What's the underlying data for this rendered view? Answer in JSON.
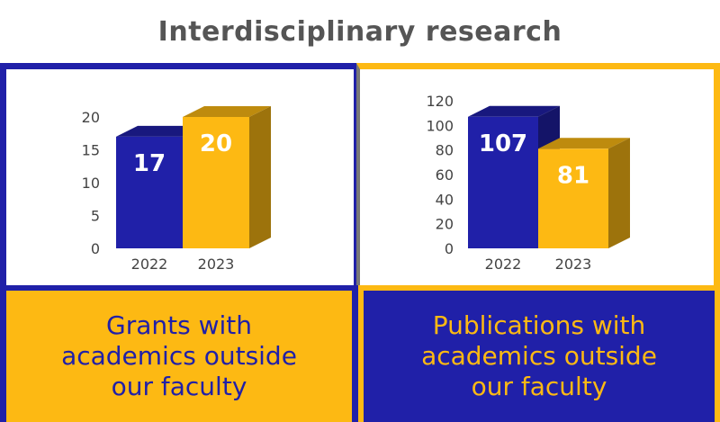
{
  "title": "Interdisciplinary research",
  "colors": {
    "blue": "#2020a8",
    "gold": "#fdb913"
  },
  "captions": {
    "left": [
      "Grants with",
      "academics outside",
      "our faculty"
    ],
    "right": [
      "Publications with",
      "academics outside",
      "our faculty"
    ]
  },
  "chart_data": [
    {
      "type": "bar",
      "categories": [
        "2022",
        "2023"
      ],
      "values": [
        17,
        20
      ],
      "data_labels": [
        "17",
        "20"
      ],
      "ylim": [
        0,
        20
      ],
      "yticks": [
        "0",
        "5",
        "10",
        "15",
        "20"
      ],
      "colors": [
        "#2020a8",
        "#fdb913"
      ]
    },
    {
      "type": "bar",
      "categories": [
        "2022",
        "2023"
      ],
      "values": [
        107,
        81
      ],
      "data_labels": [
        "107",
        "81"
      ],
      "ylim": [
        0,
        120
      ],
      "yticks": [
        "0",
        "20",
        "40",
        "60",
        "80",
        "100",
        "120"
      ],
      "colors": [
        "#2020a8",
        "#fdb913"
      ]
    }
  ]
}
